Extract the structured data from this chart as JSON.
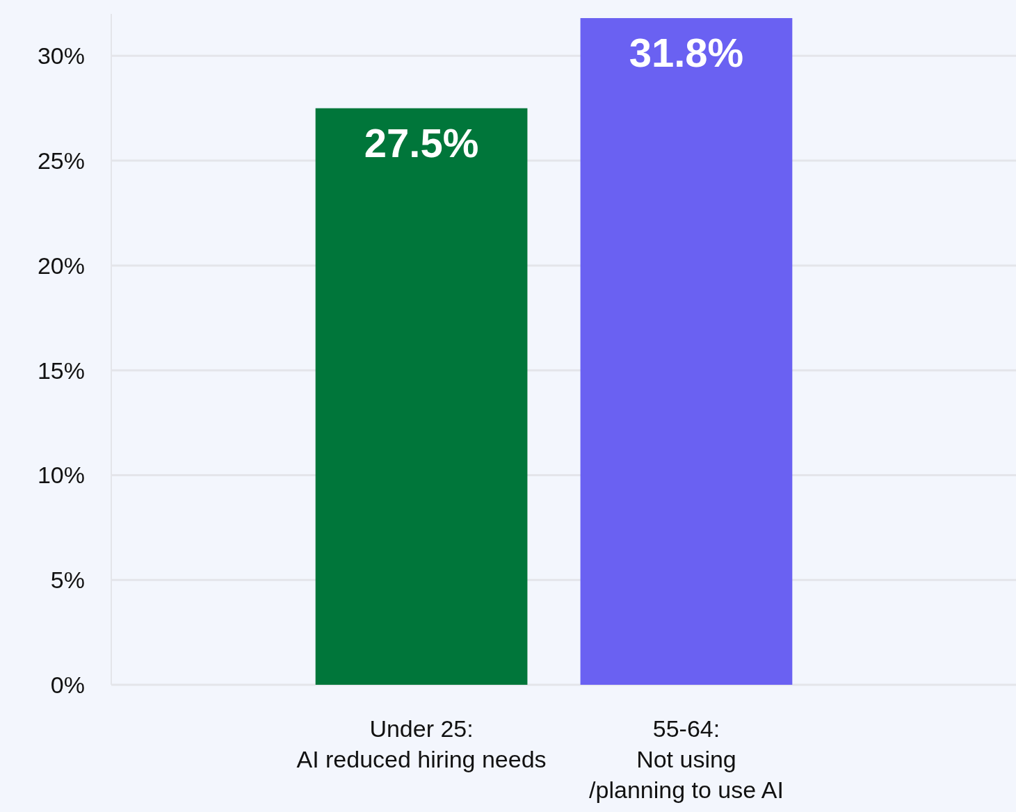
{
  "chart_data": {
    "type": "bar",
    "categories": [
      "Under 25:\nAI reduced hiring needs",
      "55-64:\nNot using\n/planning to use AI"
    ],
    "values": [
      27.5,
      31.8
    ],
    "colors": [
      "#00763a",
      "#6a61f2"
    ],
    "value_labels": [
      "27.5%",
      "31.8%"
    ],
    "ylim": [
      0,
      32
    ],
    "yticks": [
      {
        "value": 0,
        "label": "0%"
      },
      {
        "value": 5,
        "label": "5%"
      },
      {
        "value": 10,
        "label": "10%"
      },
      {
        "value": 15,
        "label": "15%"
      },
      {
        "value": 20,
        "label": "20%"
      },
      {
        "value": 25,
        "label": "25%"
      },
      {
        "value": 30,
        "label": "30%"
      }
    ],
    "grid": "y"
  }
}
